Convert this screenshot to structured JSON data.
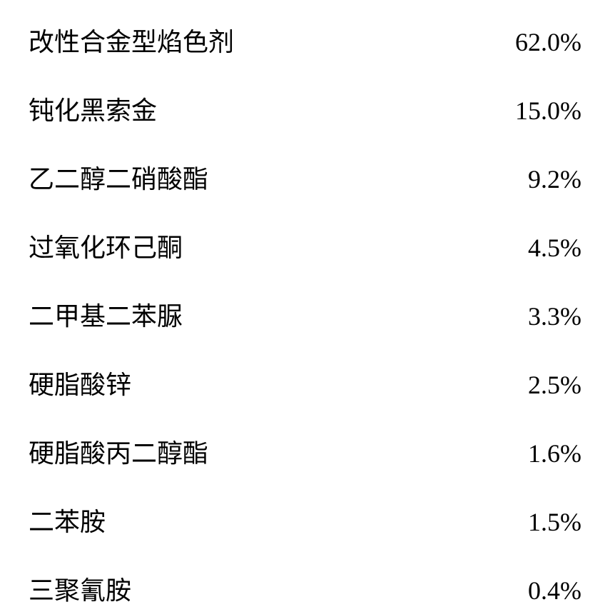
{
  "table": {
    "background_color": "#ffffff",
    "text_color": "#000000",
    "label_fontsize": 36,
    "value_fontsize": 36,
    "row_spacing": 44,
    "rows": [
      {
        "label": "改性合金型焰色剂",
        "value": "62.0%"
      },
      {
        "label": "钝化黑索金",
        "value": "15.0%"
      },
      {
        "label": "乙二醇二硝酸酯",
        "value": "9.2%"
      },
      {
        "label": "过氧化环己酮",
        "value": "4.5%"
      },
      {
        "label": "二甲基二苯脲",
        "value": "3.3%"
      },
      {
        "label": "硬脂酸锌",
        "value": "2.5%"
      },
      {
        "label": "硬脂酸丙二醇酯",
        "value": "1.6%"
      },
      {
        "label": "二苯胺",
        "value": "1.5%"
      },
      {
        "label": "三聚氰胺",
        "value": "0.4%"
      }
    ]
  }
}
